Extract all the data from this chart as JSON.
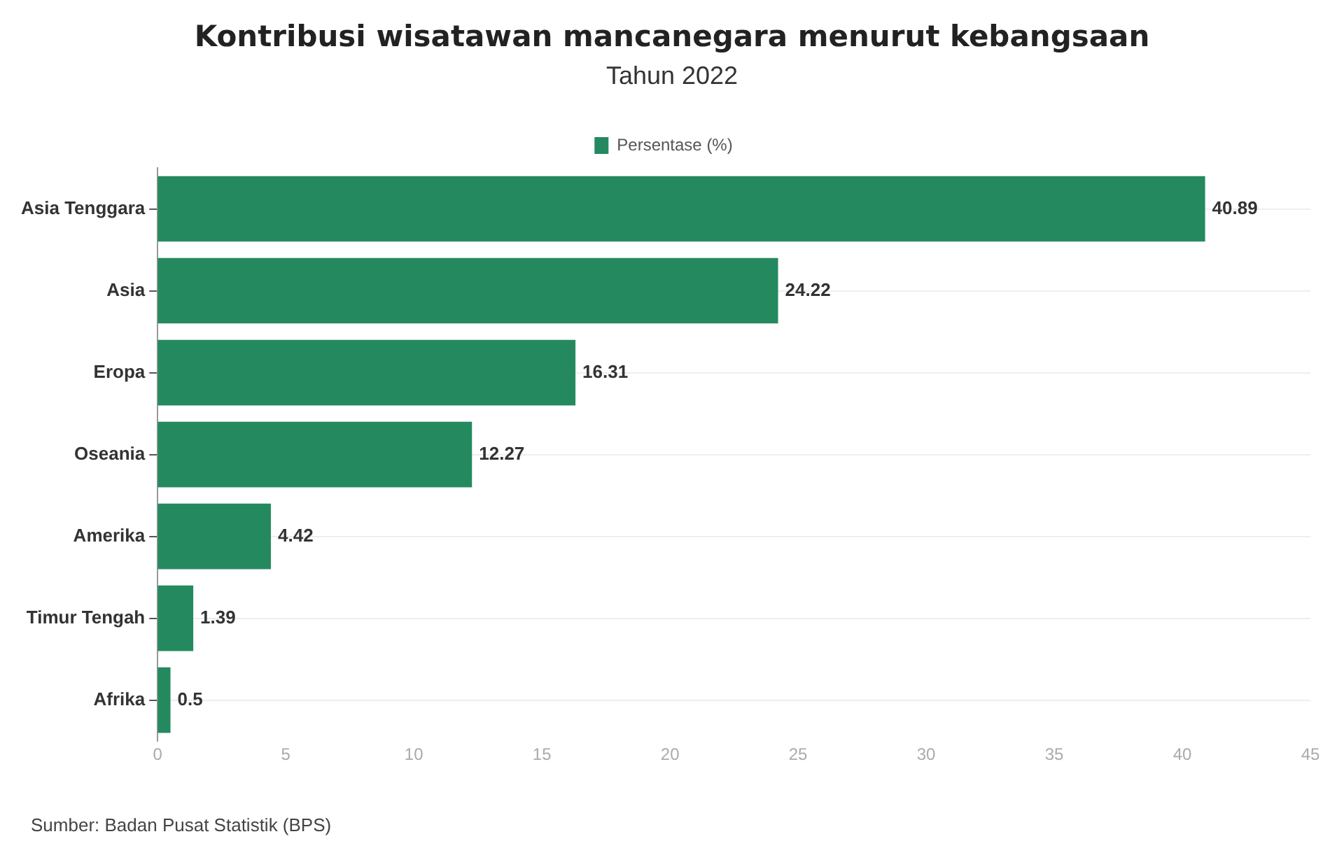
{
  "chart_data": {
    "type": "bar",
    "orientation": "horizontal",
    "title": "Kontribusi wisatawan mancanegara menurut kebangsaan",
    "subtitle": "Tahun 2022",
    "categories": [
      "Asia Tenggara",
      "Asia",
      "Eropa",
      "Oseania",
      "Amerika",
      "Timur Tengah",
      "Afrika"
    ],
    "series": [
      {
        "name": "Persentase (%)",
        "color": "#25895f",
        "values": [
          40.89,
          24.22,
          16.31,
          12.27,
          4.42,
          1.39,
          0.5
        ]
      }
    ],
    "xlim": [
      0,
      45
    ],
    "xticks": [
      0,
      5,
      10,
      15,
      20,
      25,
      30,
      35,
      40,
      45
    ],
    "grid": "y",
    "legend": "top",
    "data_labels": true,
    "annotations": [
      "Sumber: Badan Pusat Statistik (BPS)"
    ]
  }
}
